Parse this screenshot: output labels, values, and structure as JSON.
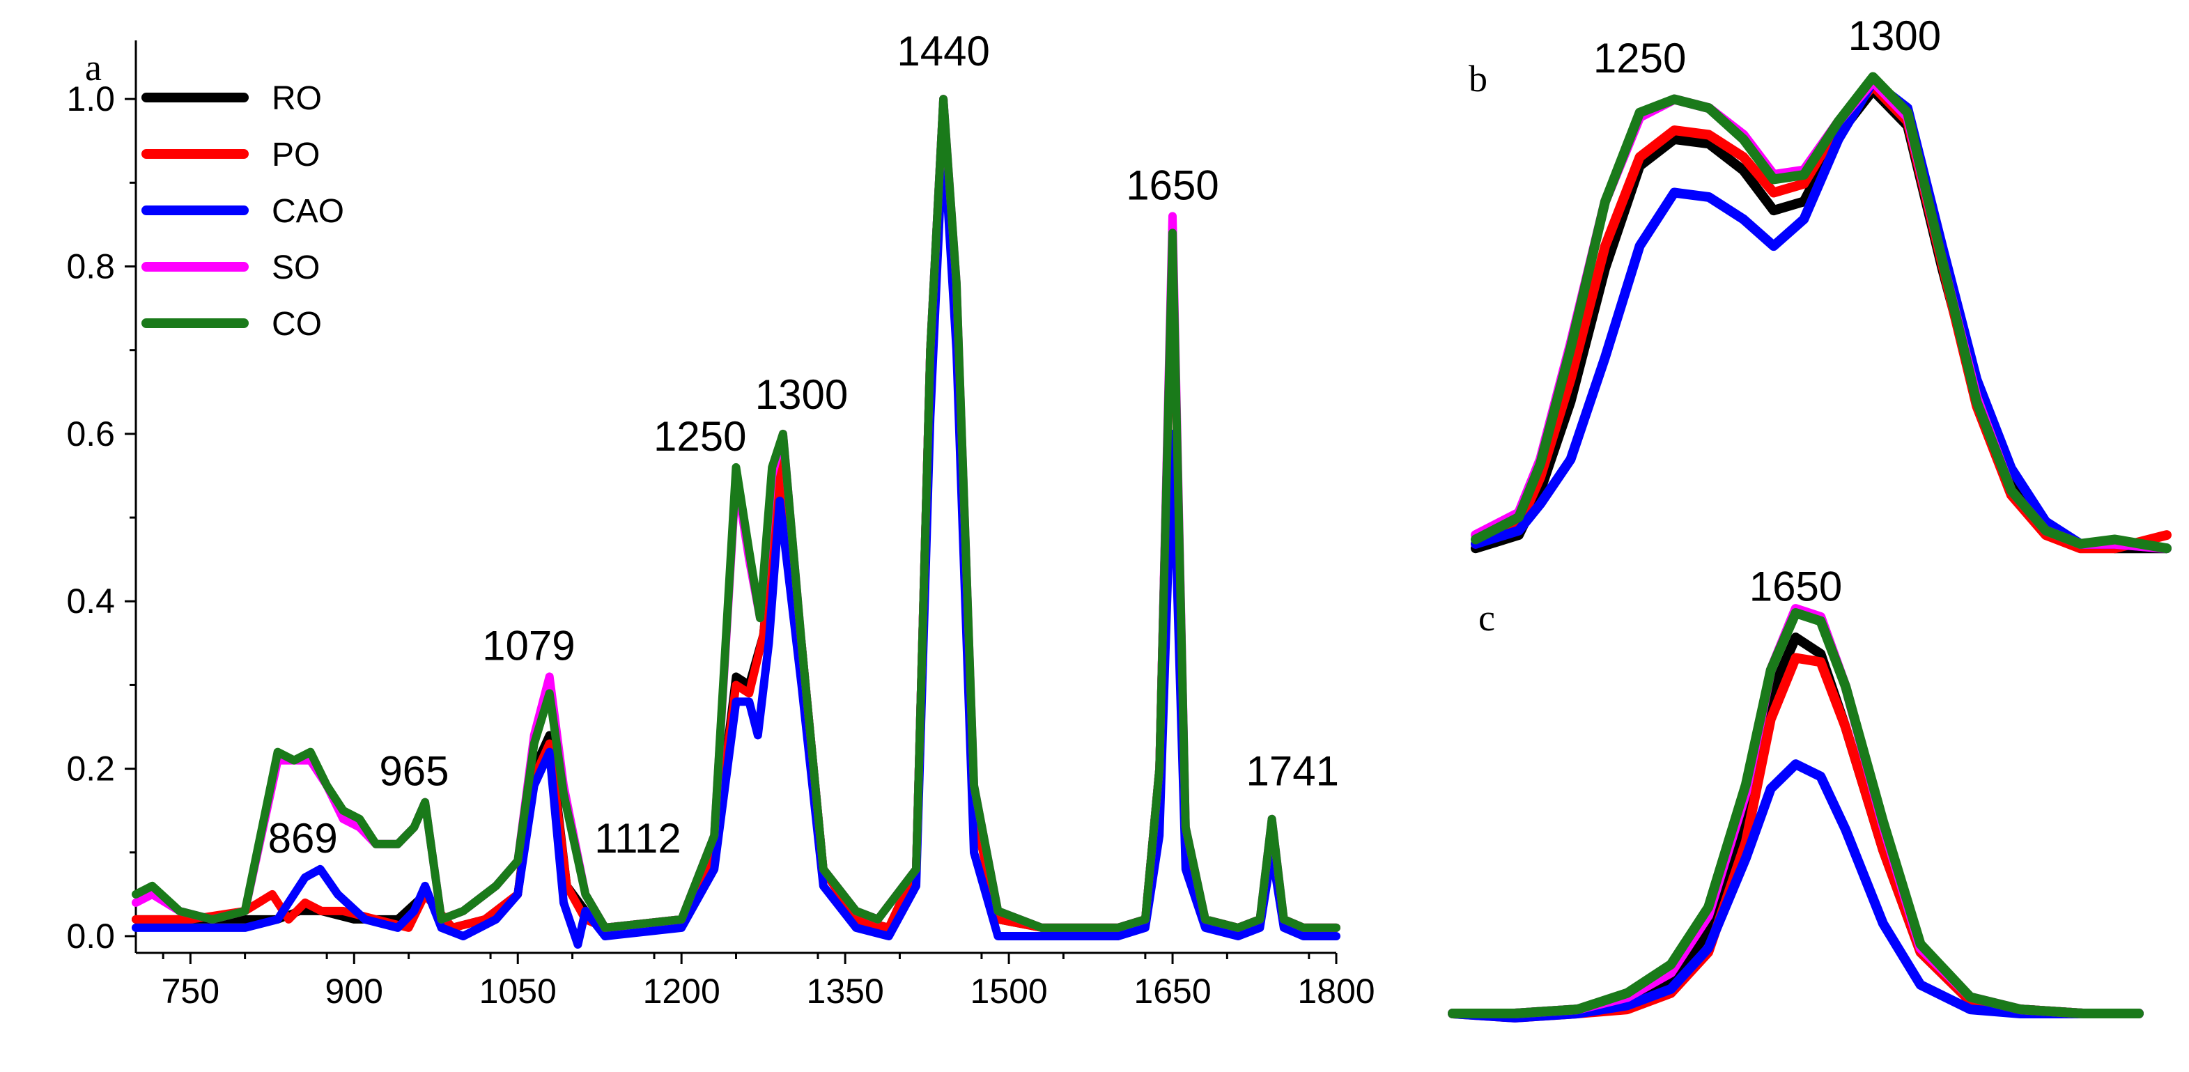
{
  "chart_data": [
    {
      "panel": "a",
      "type": "line",
      "title": "",
      "xlabel": "",
      "ylabel": "",
      "xlim": [
        700,
        1800
      ],
      "ylim": [
        -0.02,
        1.07
      ],
      "x_ticks": [
        750,
        900,
        1050,
        1200,
        1350,
        1500,
        1650,
        1800
      ],
      "y_ticks": [
        0.0,
        0.2,
        0.4,
        0.6,
        0.8,
        1.0
      ],
      "legend_position": "top-left",
      "annotations": [
        {
          "text": "1440",
          "x": 1440,
          "y": 1.04
        },
        {
          "text": "1650",
          "x": 1650,
          "y": 0.88
        },
        {
          "text": "1300",
          "x": 1310,
          "y": 0.63
        },
        {
          "text": "1250",
          "x": 1217,
          "y": 0.58
        },
        {
          "text": "1079",
          "x": 1060,
          "y": 0.33
        },
        {
          "text": "965",
          "x": 955,
          "y": 0.18
        },
        {
          "text": "869",
          "x": 853,
          "y": 0.1
        },
        {
          "text": "1112",
          "x": 1160,
          "y": 0.1
        },
        {
          "text": "1741",
          "x": 1760,
          "y": 0.18
        }
      ],
      "series": [
        {
          "name": "RO",
          "color": "#000000",
          "x": [
            700,
            750,
            800,
            830,
            850,
            870,
            900,
            940,
            965,
            990,
            1020,
            1050,
            1065,
            1079,
            1095,
            1112,
            1130,
            1200,
            1230,
            1250,
            1262,
            1275,
            1290,
            1310,
            1330,
            1360,
            1390,
            1415,
            1428,
            1440,
            1452,
            1468,
            1490,
            1530,
            1600,
            1625,
            1638,
            1650,
            1662,
            1680,
            1710,
            1730,
            1741,
            1752,
            1770,
            1800
          ],
          "y": [
            0.02,
            0.02,
            0.02,
            0.02,
            0.03,
            0.03,
            0.02,
            0.02,
            0.05,
            0.01,
            0.02,
            0.05,
            0.2,
            0.24,
            0.06,
            0.03,
            0.01,
            0.02,
            0.1,
            0.31,
            0.3,
            0.36,
            0.58,
            0.35,
            0.08,
            0.02,
            0.01,
            0.08,
            0.7,
            1.0,
            0.75,
            0.15,
            0.02,
            0.01,
            0.01,
            0.02,
            0.2,
            0.84,
            0.12,
            0.02,
            0.01,
            0.02,
            0.12,
            0.02,
            0.01,
            0.01
          ]
        },
        {
          "name": "PO",
          "color": "#ff0000",
          "x": [
            700,
            750,
            800,
            825,
            840,
            855,
            870,
            890,
            920,
            950,
            965,
            990,
            1020,
            1050,
            1065,
            1079,
            1095,
            1112,
            1130,
            1200,
            1230,
            1250,
            1262,
            1275,
            1290,
            1310,
            1330,
            1360,
            1390,
            1415,
            1428,
            1440,
            1452,
            1468,
            1490,
            1530,
            1600,
            1625,
            1638,
            1650,
            1662,
            1680,
            1710,
            1730,
            1741,
            1752,
            1770,
            1800
          ],
          "y": [
            0.02,
            0.02,
            0.03,
            0.05,
            0.02,
            0.04,
            0.03,
            0.03,
            0.02,
            0.01,
            0.05,
            0.01,
            0.02,
            0.05,
            0.19,
            0.23,
            0.06,
            0.02,
            0.01,
            0.02,
            0.1,
            0.3,
            0.29,
            0.36,
            0.57,
            0.35,
            0.08,
            0.02,
            0.01,
            0.08,
            0.7,
            0.98,
            0.75,
            0.15,
            0.02,
            0.01,
            0.01,
            0.02,
            0.2,
            0.84,
            0.12,
            0.02,
            0.01,
            0.02,
            0.11,
            0.02,
            0.01,
            0.01
          ]
        },
        {
          "name": "CAO",
          "color": "#0000ff",
          "x": [
            700,
            750,
            800,
            830,
            855,
            869,
            885,
            910,
            940,
            955,
            965,
            980,
            1000,
            1030,
            1050,
            1065,
            1079,
            1092,
            1105,
            1112,
            1130,
            1200,
            1230,
            1250,
            1262,
            1270,
            1280,
            1290,
            1310,
            1330,
            1360,
            1390,
            1415,
            1428,
            1440,
            1452,
            1468,
            1490,
            1530,
            1600,
            1625,
            1638,
            1650,
            1662,
            1680,
            1710,
            1730,
            1741,
            1752,
            1770,
            1800
          ],
          "y": [
            0.01,
            0.01,
            0.01,
            0.02,
            0.07,
            0.08,
            0.05,
            0.02,
            0.01,
            0.03,
            0.06,
            0.01,
            0.0,
            0.02,
            0.05,
            0.18,
            0.22,
            0.04,
            -0.01,
            0.03,
            0.0,
            0.01,
            0.08,
            0.28,
            0.28,
            0.24,
            0.35,
            0.52,
            0.3,
            0.06,
            0.01,
            0.0,
            0.06,
            0.62,
            0.96,
            0.7,
            0.1,
            0.0,
            0.0,
            0.0,
            0.01,
            0.12,
            0.6,
            0.08,
            0.01,
            0.0,
            0.01,
            0.1,
            0.01,
            0.0,
            0.0
          ]
        },
        {
          "name": "SO",
          "color": "#ff00ff",
          "x": [
            700,
            715,
            740,
            770,
            800,
            830,
            845,
            860,
            875,
            890,
            905,
            920,
            940,
            955,
            965,
            980,
            1000,
            1030,
            1050,
            1065,
            1079,
            1092,
            1112,
            1130,
            1200,
            1230,
            1250,
            1262,
            1272,
            1283,
            1293,
            1310,
            1330,
            1360,
            1380,
            1415,
            1428,
            1440,
            1452,
            1468,
            1490,
            1530,
            1600,
            1625,
            1638,
            1650,
            1662,
            1680,
            1710,
            1730,
            1741,
            1752,
            1770,
            1800
          ],
          "y": [
            0.04,
            0.05,
            0.03,
            0.02,
            0.03,
            0.21,
            0.21,
            0.21,
            0.18,
            0.14,
            0.13,
            0.11,
            0.11,
            0.13,
            0.16,
            0.02,
            0.03,
            0.06,
            0.09,
            0.24,
            0.31,
            0.18,
            0.05,
            0.01,
            0.02,
            0.12,
            0.55,
            0.45,
            0.38,
            0.55,
            0.6,
            0.35,
            0.08,
            0.03,
            0.02,
            0.08,
            0.7,
            1.0,
            0.78,
            0.18,
            0.03,
            0.01,
            0.01,
            0.02,
            0.2,
            0.86,
            0.13,
            0.02,
            0.01,
            0.02,
            0.14,
            0.02,
            0.01,
            0.01
          ]
        },
        {
          "name": "CO",
          "color": "#1a7a1a",
          "x": [
            700,
            715,
            740,
            770,
            800,
            830,
            845,
            860,
            875,
            890,
            905,
            920,
            940,
            955,
            965,
            980,
            1000,
            1030,
            1050,
            1065,
            1079,
            1092,
            1112,
            1130,
            1200,
            1230,
            1250,
            1262,
            1272,
            1283,
            1293,
            1310,
            1330,
            1360,
            1380,
            1415,
            1428,
            1440,
            1452,
            1468,
            1490,
            1530,
            1600,
            1625,
            1638,
            1650,
            1662,
            1680,
            1710,
            1730,
            1741,
            1752,
            1770,
            1800
          ],
          "y": [
            0.05,
            0.06,
            0.03,
            0.02,
            0.03,
            0.22,
            0.21,
            0.22,
            0.18,
            0.15,
            0.14,
            0.11,
            0.11,
            0.13,
            0.16,
            0.02,
            0.03,
            0.06,
            0.09,
            0.23,
            0.29,
            0.17,
            0.05,
            0.01,
            0.02,
            0.12,
            0.56,
            0.46,
            0.38,
            0.56,
            0.6,
            0.35,
            0.08,
            0.03,
            0.02,
            0.08,
            0.7,
            1.0,
            0.78,
            0.18,
            0.03,
            0.01,
            0.01,
            0.02,
            0.2,
            0.84,
            0.13,
            0.02,
            0.01,
            0.02,
            0.14,
            0.02,
            0.01,
            0.01
          ]
        }
      ]
    },
    {
      "panel": "b",
      "type": "line",
      "title": "",
      "xlim": [
        1200,
        1360
      ],
      "ylim": [
        0.0,
        1.12
      ],
      "axes_visible": false,
      "annotations": [
        {
          "text": "1250",
          "x": 1238,
          "y": 1.09
        },
        {
          "text": "1300",
          "x": 1297,
          "y": 1.14
        }
      ],
      "series": [
        {
          "name": "RO",
          "color": "#000000",
          "x": [
            1200,
            1210,
            1215,
            1222,
            1230,
            1238,
            1246,
            1254,
            1262,
            1269,
            1276,
            1284,
            1292,
            1300,
            1308,
            1316,
            1324,
            1332,
            1340,
            1348,
            1360
          ],
          "y": [
            0.02,
            0.05,
            0.15,
            0.35,
            0.65,
            0.88,
            0.94,
            0.93,
            0.87,
            0.78,
            0.8,
            0.95,
            1.05,
            0.97,
            0.65,
            0.36,
            0.16,
            0.06,
            0.03,
            0.02,
            0.02
          ]
        },
        {
          "name": "PO",
          "color": "#ff0000",
          "x": [
            1200,
            1210,
            1215,
            1222,
            1230,
            1238,
            1246,
            1254,
            1262,
            1269,
            1276,
            1284,
            1292,
            1300,
            1308,
            1316,
            1324,
            1332,
            1340,
            1348,
            1360
          ],
          "y": [
            0.03,
            0.07,
            0.18,
            0.4,
            0.7,
            0.9,
            0.96,
            0.95,
            0.9,
            0.82,
            0.84,
            0.97,
            1.06,
            0.98,
            0.66,
            0.34,
            0.14,
            0.05,
            0.02,
            0.02,
            0.05
          ]
        },
        {
          "name": "CAO",
          "color": "#0000ff",
          "x": [
            1200,
            1210,
            1215,
            1222,
            1230,
            1238,
            1246,
            1254,
            1262,
            1269,
            1276,
            1284,
            1292,
            1300,
            1308,
            1316,
            1324,
            1332,
            1340,
            1348,
            1360
          ],
          "y": [
            0.03,
            0.06,
            0.12,
            0.22,
            0.45,
            0.7,
            0.82,
            0.81,
            0.76,
            0.7,
            0.76,
            0.94,
            1.07,
            1.01,
            0.7,
            0.4,
            0.2,
            0.08,
            0.03,
            0.03,
            0.02
          ]
        },
        {
          "name": "SO",
          "color": "#ff00ff",
          "x": [
            1200,
            1210,
            1215,
            1222,
            1230,
            1238,
            1246,
            1254,
            1262,
            1269,
            1276,
            1284,
            1292,
            1300,
            1308,
            1316,
            1324,
            1332,
            1340,
            1348,
            1360
          ],
          "y": [
            0.05,
            0.1,
            0.22,
            0.48,
            0.8,
            0.99,
            1.03,
            1.01,
            0.95,
            0.86,
            0.87,
            0.98,
            1.07,
            0.99,
            0.67,
            0.36,
            0.15,
            0.06,
            0.03,
            0.03,
            0.02
          ]
        },
        {
          "name": "CO",
          "color": "#1a7a1a",
          "x": [
            1200,
            1210,
            1215,
            1222,
            1230,
            1238,
            1246,
            1254,
            1262,
            1269,
            1276,
            1284,
            1292,
            1300,
            1308,
            1316,
            1324,
            1332,
            1340,
            1348,
            1360
          ],
          "y": [
            0.04,
            0.09,
            0.21,
            0.47,
            0.8,
            1.0,
            1.03,
            1.01,
            0.94,
            0.85,
            0.86,
            0.98,
            1.08,
            1.0,
            0.67,
            0.35,
            0.15,
            0.06,
            0.03,
            0.04,
            0.02
          ]
        }
      ]
    },
    {
      "panel": "c",
      "type": "line",
      "title": "",
      "xlim": [
        1595,
        1705
      ],
      "ylim": [
        0.0,
        0.98
      ],
      "axes_visible": false,
      "annotations": [
        {
          "text": "1650",
          "x": 1650,
          "y": 1.01
        }
      ],
      "series": [
        {
          "name": "RO",
          "color": "#000000",
          "x": [
            1595,
            1605,
            1615,
            1623,
            1630,
            1636,
            1642,
            1646,
            1650,
            1654,
            1658,
            1664,
            1670,
            1678,
            1686,
            1696,
            1705
          ],
          "y": [
            0.0,
            0.0,
            0.01,
            0.03,
            0.08,
            0.2,
            0.5,
            0.78,
            0.92,
            0.88,
            0.7,
            0.4,
            0.15,
            0.03,
            0.01,
            0.0,
            0.0
          ]
        },
        {
          "name": "PO",
          "color": "#ff0000",
          "x": [
            1595,
            1605,
            1615,
            1623,
            1630,
            1636,
            1642,
            1646,
            1650,
            1654,
            1658,
            1664,
            1670,
            1678,
            1686,
            1696,
            1705
          ],
          "y": [
            0.0,
            -0.01,
            0.0,
            0.01,
            0.05,
            0.15,
            0.42,
            0.72,
            0.87,
            0.86,
            0.7,
            0.4,
            0.15,
            0.03,
            0.01,
            0.0,
            0.0
          ]
        },
        {
          "name": "CAO",
          "color": "#0000ff",
          "x": [
            1595,
            1605,
            1615,
            1623,
            1630,
            1636,
            1642,
            1646,
            1650,
            1654,
            1658,
            1664,
            1670,
            1678,
            1686,
            1696,
            1705
          ],
          "y": [
            0.0,
            -0.01,
            0.0,
            0.02,
            0.06,
            0.16,
            0.38,
            0.55,
            0.61,
            0.58,
            0.45,
            0.22,
            0.07,
            0.01,
            0.0,
            0.0,
            0.0
          ]
        },
        {
          "name": "SO",
          "color": "#ff00ff",
          "x": [
            1595,
            1605,
            1615,
            1623,
            1630,
            1636,
            1642,
            1646,
            1650,
            1654,
            1658,
            1664,
            1670,
            1678,
            1686,
            1696,
            1705
          ],
          "y": [
            0.0,
            0.0,
            0.01,
            0.04,
            0.1,
            0.24,
            0.54,
            0.84,
            0.99,
            0.97,
            0.8,
            0.46,
            0.16,
            0.04,
            0.01,
            0.0,
            0.0
          ]
        },
        {
          "name": "CO",
          "color": "#1a7a1a",
          "x": [
            1595,
            1605,
            1615,
            1623,
            1630,
            1636,
            1642,
            1646,
            1650,
            1654,
            1658,
            1664,
            1670,
            1678,
            1686,
            1696,
            1705
          ],
          "y": [
            0.0,
            0.0,
            0.01,
            0.05,
            0.12,
            0.26,
            0.56,
            0.84,
            0.98,
            0.96,
            0.8,
            0.47,
            0.17,
            0.04,
            0.01,
            0.0,
            0.0
          ]
        }
      ]
    }
  ]
}
